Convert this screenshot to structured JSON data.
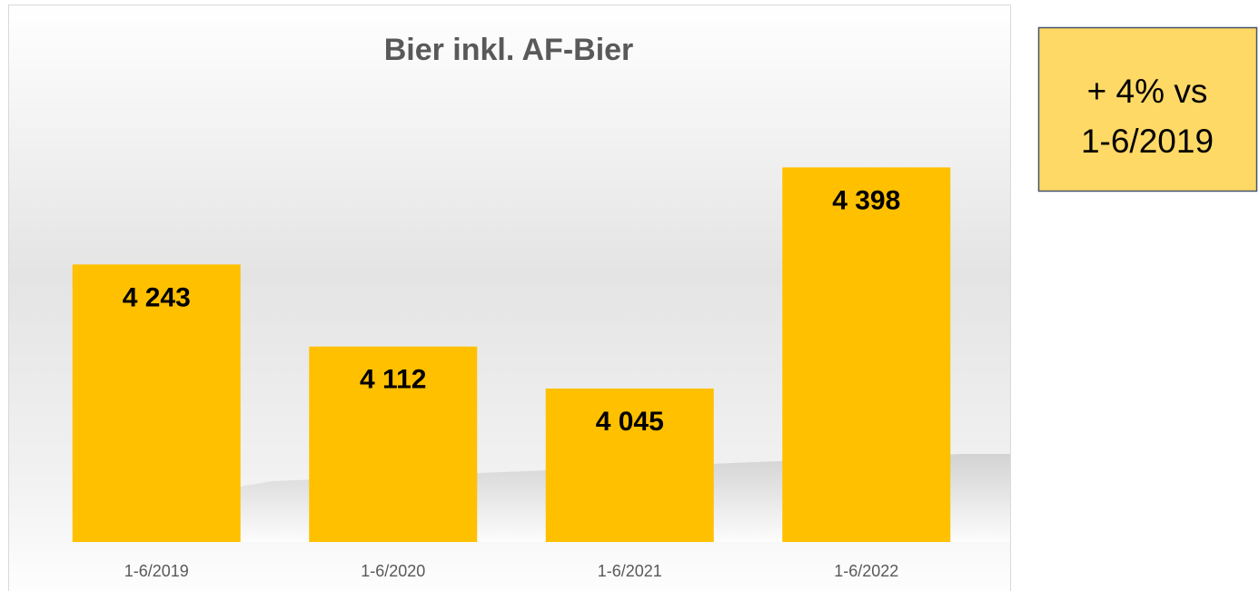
{
  "chart_data": {
    "type": "bar",
    "title": "Bier inkl. AF-Bier",
    "categories": [
      "1-6/2019",
      "1-6/2020",
      "1-6/2021",
      "1-6/2022"
    ],
    "values": [
      4243,
      4112,
      4045,
      4398
    ],
    "value_labels": [
      "4 243",
      "4 112",
      "4 045",
      "4 398"
    ],
    "color": "#ffc000",
    "ylim": [
      3800,
      4500
    ],
    "annotation": [
      "+ 4% vs",
      "1-6/2019"
    ]
  }
}
